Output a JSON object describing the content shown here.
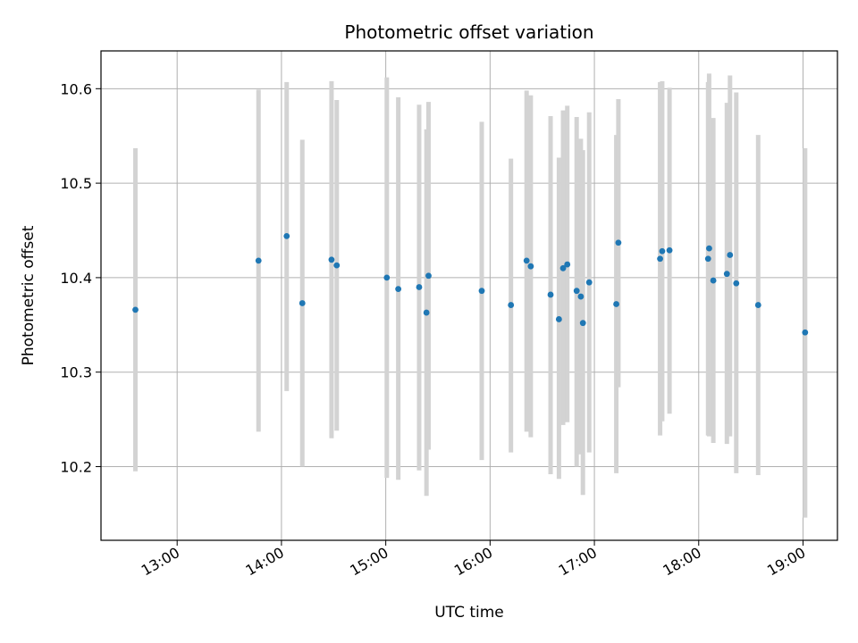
{
  "chart_data": {
    "type": "scatter",
    "title": "Photometric offset variation",
    "xlabel": "UTC time",
    "ylabel": "Photometric offset",
    "x_unit": "UTC hours",
    "x_ticks": [
      {
        "value": 13.0,
        "label": "13:00"
      },
      {
        "value": 14.0,
        "label": "14:00"
      },
      {
        "value": 15.0,
        "label": "15:00"
      },
      {
        "value": 16.0,
        "label": "16:00"
      },
      {
        "value": 17.0,
        "label": "17:00"
      },
      {
        "value": 18.0,
        "label": "18:00"
      },
      {
        "value": 19.0,
        "label": "19:00"
      }
    ],
    "y_ticks": [
      {
        "value": 10.2,
        "label": "10.2"
      },
      {
        "value": 10.3,
        "label": "10.3"
      },
      {
        "value": 10.4,
        "label": "10.4"
      },
      {
        "value": 10.5,
        "label": "10.5"
      },
      {
        "value": 10.6,
        "label": "10.6"
      }
    ],
    "xlim": [
      12.27,
      19.33
    ],
    "ylim": [
      10.122,
      10.64
    ],
    "grid": true,
    "point_color": "#1f77b4",
    "errorbar_color": "#d3d3d3",
    "points": [
      {
        "x": 12.6,
        "y": 10.366,
        "low": 10.195,
        "high": 10.537
      },
      {
        "x": 13.78,
        "y": 10.418,
        "low": 10.237,
        "high": 10.599
      },
      {
        "x": 14.05,
        "y": 10.444,
        "low": 10.28,
        "high": 10.607
      },
      {
        "x": 14.2,
        "y": 10.373,
        "low": 10.2,
        "high": 10.546
      },
      {
        "x": 14.48,
        "y": 10.419,
        "low": 10.23,
        "high": 10.608
      },
      {
        "x": 14.53,
        "y": 10.413,
        "low": 10.238,
        "high": 10.588
      },
      {
        "x": 15.01,
        "y": 10.4,
        "low": 10.188,
        "high": 10.612
      },
      {
        "x": 15.12,
        "y": 10.388,
        "low": 10.186,
        "high": 10.591
      },
      {
        "x": 15.32,
        "y": 10.39,
        "low": 10.196,
        "high": 10.583
      },
      {
        "x": 15.39,
        "y": 10.363,
        "low": 10.169,
        "high": 10.557
      },
      {
        "x": 15.41,
        "y": 10.402,
        "low": 10.218,
        "high": 10.586
      },
      {
        "x": 15.92,
        "y": 10.386,
        "low": 10.207,
        "high": 10.565
      },
      {
        "x": 16.2,
        "y": 10.371,
        "low": 10.215,
        "high": 10.526
      },
      {
        "x": 16.35,
        "y": 10.418,
        "low": 10.237,
        "high": 10.598
      },
      {
        "x": 16.39,
        "y": 10.412,
        "low": 10.231,
        "high": 10.593
      },
      {
        "x": 16.58,
        "y": 10.382,
        "low": 10.192,
        "high": 10.571
      },
      {
        "x": 16.66,
        "y": 10.356,
        "low": 10.187,
        "high": 10.527
      },
      {
        "x": 16.7,
        "y": 10.41,
        "low": 10.244,
        "high": 10.577
      },
      {
        "x": 16.74,
        "y": 10.414,
        "low": 10.247,
        "high": 10.582
      },
      {
        "x": 16.83,
        "y": 10.386,
        "low": 10.2,
        "high": 10.57
      },
      {
        "x": 16.87,
        "y": 10.38,
        "low": 10.213,
        "high": 10.547
      },
      {
        "x": 16.89,
        "y": 10.352,
        "low": 10.17,
        "high": 10.535
      },
      {
        "x": 16.95,
        "y": 10.395,
        "low": 10.215,
        "high": 10.575
      },
      {
        "x": 17.21,
        "y": 10.372,
        "low": 10.193,
        "high": 10.551
      },
      {
        "x": 17.23,
        "y": 10.437,
        "low": 10.284,
        "high": 10.589
      },
      {
        "x": 17.63,
        "y": 10.42,
        "low": 10.233,
        "high": 10.607
      },
      {
        "x": 17.65,
        "y": 10.428,
        "low": 10.248,
        "high": 10.608
      },
      {
        "x": 17.72,
        "y": 10.429,
        "low": 10.256,
        "high": 10.601
      },
      {
        "x": 18.09,
        "y": 10.42,
        "low": 10.233,
        "high": 10.607
      },
      {
        "x": 18.1,
        "y": 10.431,
        "low": 10.232,
        "high": 10.616
      },
      {
        "x": 18.14,
        "y": 10.397,
        "low": 10.225,
        "high": 10.569
      },
      {
        "x": 18.27,
        "y": 10.404,
        "low": 10.224,
        "high": 10.585
      },
      {
        "x": 18.3,
        "y": 10.424,
        "low": 10.232,
        "high": 10.614
      },
      {
        "x": 18.36,
        "y": 10.394,
        "low": 10.193,
        "high": 10.596
      },
      {
        "x": 18.57,
        "y": 10.371,
        "low": 10.191,
        "high": 10.551
      },
      {
        "x": 19.02,
        "y": 10.342,
        "low": 10.146,
        "high": 10.537
      }
    ]
  }
}
